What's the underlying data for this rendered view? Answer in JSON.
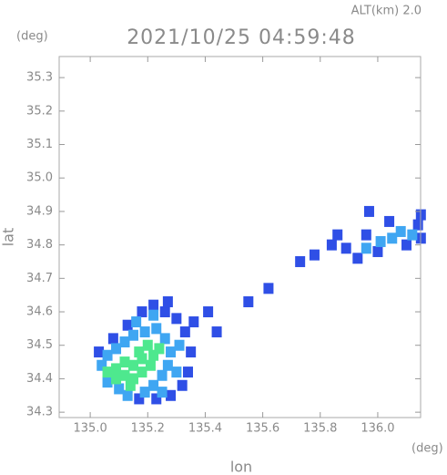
{
  "chart_data": {
    "type": "scatter",
    "title": "2021/10/25 04:59:48",
    "alt_label": "ALT(km) 2.0",
    "xlabel": "lon",
    "ylabel": "lat",
    "x_unit": "(deg)",
    "y_unit": "(deg)",
    "xlim": [
      134.892,
      136.149
    ],
    "ylim": [
      34.284,
      35.363
    ],
    "xticks": [
      {
        "value": 135,
        "label": "135.0"
      },
      135.2,
      135.4,
      135.6,
      135.8,
      {
        "value": 136,
        "label": "136.0"
      }
    ],
    "yticks": [
      34.3,
      34.4,
      34.5,
      34.6,
      34.7,
      34.8,
      34.9,
      {
        "value": 35,
        "label": "35.0"
      },
      35.1,
      35.2,
      35.3
    ],
    "series": [
      {
        "color": "#2f4fe6",
        "x": [
          135.03,
          135.08,
          135.13,
          135.18,
          135.26,
          135.3,
          135.33,
          135.35,
          135.34,
          135.32,
          135.28,
          135.23,
          135.17,
          135.27,
          135.22,
          135.36,
          135.41,
          135.44,
          135.55,
          135.62,
          135.73,
          135.78,
          135.84,
          135.89,
          135.86,
          135.93,
          135.96,
          136.0,
          136.04,
          136.1,
          136.14,
          136.15,
          136.15,
          135.97
        ],
        "y": [
          34.48,
          34.52,
          34.56,
          34.6,
          34.6,
          34.58,
          34.54,
          34.48,
          34.42,
          34.38,
          34.35,
          34.34,
          34.34,
          34.63,
          34.62,
          34.57,
          34.6,
          34.54,
          34.63,
          34.67,
          34.75,
          34.77,
          34.8,
          34.79,
          34.83,
          34.76,
          34.83,
          34.78,
          34.87,
          34.8,
          34.86,
          34.89,
          34.82,
          34.9
        ]
      },
      {
        "color": "#3fa6f2",
        "x": [
          135.04,
          135.06,
          135.09,
          135.12,
          135.15,
          135.19,
          135.23,
          135.26,
          135.28,
          135.27,
          135.25,
          135.22,
          135.19,
          135.25,
          135.3,
          135.31,
          135.16,
          135.22,
          135.06,
          135.1,
          135.13,
          135.96,
          136.01,
          136.05,
          136.08,
          136.12
        ],
        "y": [
          34.44,
          34.47,
          34.49,
          34.51,
          34.53,
          34.54,
          34.55,
          34.52,
          34.48,
          34.44,
          34.41,
          34.38,
          34.36,
          34.36,
          34.42,
          34.5,
          34.57,
          34.59,
          34.39,
          34.37,
          34.35,
          34.79,
          34.81,
          34.82,
          34.84,
          34.83
        ]
      },
      {
        "color": "#4ee88e",
        "x": [
          135.06,
          135.09,
          135.12,
          135.15,
          135.18,
          135.21,
          135.12,
          135.15,
          135.18,
          135.22,
          135.24,
          135.09,
          135.14,
          135.2,
          135.17
        ],
        "y": [
          34.42,
          34.43,
          34.41,
          34.4,
          34.42,
          34.44,
          34.45,
          34.44,
          34.46,
          34.47,
          34.49,
          34.4,
          34.38,
          34.5,
          34.48
        ]
      }
    ]
  }
}
